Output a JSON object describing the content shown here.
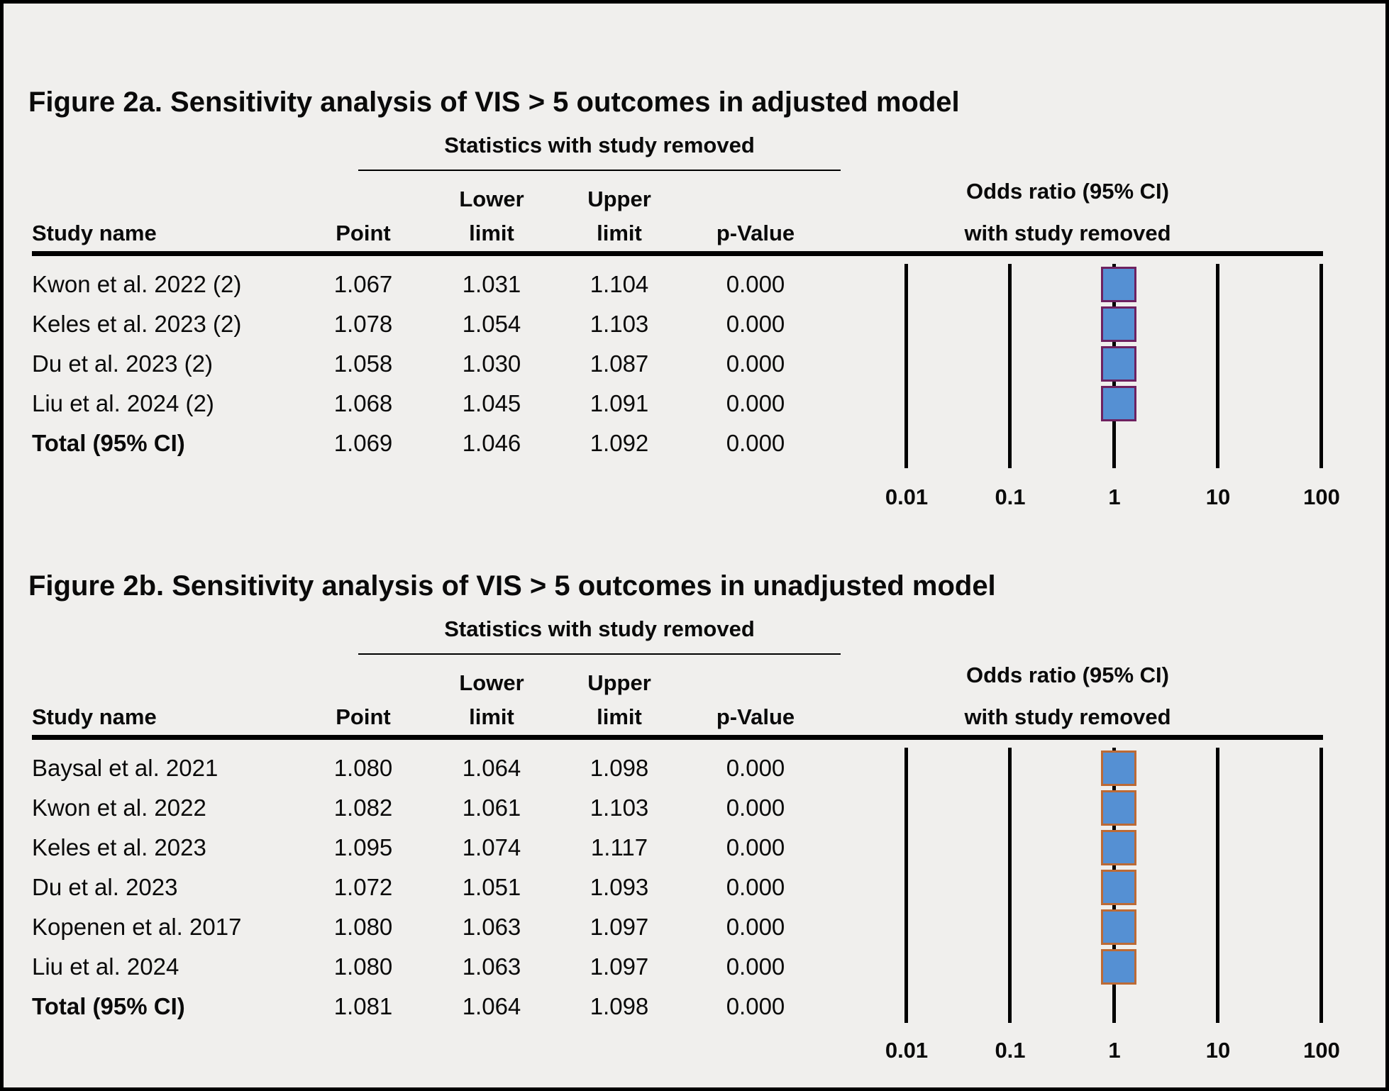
{
  "colors": {
    "background": "#f0efed",
    "marker_fill": "#5590d3",
    "marker_border_adjusted": "#6e2160",
    "marker_border_unadjusted": "#bc6a35",
    "line_color": "#000000"
  },
  "figures": [
    {
      "title": "Figure 2a. Sensitivity analysis of VIS > 5 outcomes in adjusted model",
      "stats_header": "Statistics with study removed",
      "plot_header_line1": "Odds ratio (95% CI)",
      "plot_header_line2": "with study removed",
      "columns": {
        "study": "Study name",
        "point": "Point",
        "lower_line1": "Lower",
        "lower_line2": "limit",
        "upper_line1": "Upper",
        "upper_line2": "limit",
        "p": "p-Value"
      },
      "axis_ticks": [
        "0.01",
        "0.1",
        "1",
        "10",
        "100"
      ],
      "marker_border": "#6e2160",
      "rows": [
        {
          "study": "Kwon et al. 2022 (2)",
          "point": "1.067",
          "lower": "1.031",
          "upper": "1.104",
          "p": "0.000",
          "marker": true,
          "bold": false
        },
        {
          "study": "Keles et al. 2023 (2)",
          "point": "1.078",
          "lower": "1.054",
          "upper": "1.103",
          "p": "0.000",
          "marker": true,
          "bold": false
        },
        {
          "study": "Du et al. 2023 (2)",
          "point": "1.058",
          "lower": "1.030",
          "upper": "1.087",
          "p": "0.000",
          "marker": true,
          "bold": false
        },
        {
          "study": "Liu et al. 2024 (2)",
          "point": "1.068",
          "lower": "1.045",
          "upper": "1.091",
          "p": "0.000",
          "marker": true,
          "bold": false
        },
        {
          "study": "Total (95% CI)",
          "point": "1.069",
          "lower": "1.046",
          "upper": "1.092",
          "p": "0.000",
          "marker": false,
          "bold": true
        }
      ]
    },
    {
      "title": "Figure 2b. Sensitivity analysis of VIS > 5 outcomes in unadjusted model",
      "stats_header": "Statistics with study removed",
      "plot_header_line1": "Odds ratio (95% CI)",
      "plot_header_line2": "with study removed",
      "columns": {
        "study": "Study name",
        "point": "Point",
        "lower_line1": "Lower",
        "lower_line2": "limit",
        "upper_line1": "Upper",
        "upper_line2": "limit",
        "p": "p-Value"
      },
      "axis_ticks": [
        "0.01",
        "0.1",
        "1",
        "10",
        "100"
      ],
      "marker_border": "#bc6a35",
      "rows": [
        {
          "study": "Baysal et al. 2021",
          "point": "1.080",
          "lower": "1.064",
          "upper": "1.098",
          "p": "0.000",
          "marker": true,
          "bold": false
        },
        {
          "study": "Kwon et al. 2022",
          "point": "1.082",
          "lower": "1.061",
          "upper": "1.103",
          "p": "0.000",
          "marker": true,
          "bold": false
        },
        {
          "study": "Keles et al. 2023",
          "point": "1.095",
          "lower": "1.074",
          "upper": "1.117",
          "p": "0.000",
          "marker": true,
          "bold": false
        },
        {
          "study": "Du et al. 2023",
          "point": "1.072",
          "lower": "1.051",
          "upper": "1.093",
          "p": "0.000",
          "marker": true,
          "bold": false
        },
        {
          "study": "Kopenen et al. 2017",
          "point": "1.080",
          "lower": "1.063",
          "upper": "1.097",
          "p": "0.000",
          "marker": true,
          "bold": false
        },
        {
          "study": "Liu et al. 2024",
          "point": "1.080",
          "lower": "1.063",
          "upper": "1.097",
          "p": "0.000",
          "marker": true,
          "bold": false
        },
        {
          "study": "Total (95% CI)",
          "point": "1.081",
          "lower": "1.064",
          "upper": "1.098",
          "p": "0.000",
          "marker": false,
          "bold": true
        }
      ]
    }
  ],
  "chart_data": [
    {
      "type": "scatter",
      "subtype": "forest-plot-leave-one-out",
      "title": "Figure 2a. Sensitivity analysis of VIS > 5 outcomes in adjusted model",
      "xlabel": "Odds ratio (95% CI) with study removed",
      "x_scale": "log",
      "x_ticks": [
        0.01,
        0.1,
        1,
        10,
        100
      ],
      "xlim": [
        0.01,
        100
      ],
      "grid": "vertical-lines-at-ticks",
      "legend_position": "none",
      "series": [
        {
          "name": "Odds ratio with study removed",
          "points": [
            {
              "label": "Kwon et al. 2022 (2)",
              "or": 1.067,
              "lower": 1.031,
              "upper": 1.104,
              "p_value": 0.0
            },
            {
              "label": "Keles et al. 2023 (2)",
              "or": 1.078,
              "lower": 1.054,
              "upper": 1.103,
              "p_value": 0.0
            },
            {
              "label": "Du et al. 2023 (2)",
              "or": 1.058,
              "lower": 1.03,
              "upper": 1.087,
              "p_value": 0.0
            },
            {
              "label": "Liu et al. 2024 (2)",
              "or": 1.068,
              "lower": 1.045,
              "upper": 1.091,
              "p_value": 0.0
            }
          ]
        }
      ],
      "summary": {
        "label": "Total (95% CI)",
        "or": 1.069,
        "lower": 1.046,
        "upper": 1.092,
        "p_value": 0.0
      }
    },
    {
      "type": "scatter",
      "subtype": "forest-plot-leave-one-out",
      "title": "Figure 2b. Sensitivity analysis of VIS > 5 outcomes in unadjusted model",
      "xlabel": "Odds ratio (95% CI) with study removed",
      "x_scale": "log",
      "x_ticks": [
        0.01,
        0.1,
        1,
        10,
        100
      ],
      "xlim": [
        0.01,
        100
      ],
      "grid": "vertical-lines-at-ticks",
      "legend_position": "none",
      "series": [
        {
          "name": "Odds ratio with study removed",
          "points": [
            {
              "label": "Baysal et al. 2021",
              "or": 1.08,
              "lower": 1.064,
              "upper": 1.098,
              "p_value": 0.0
            },
            {
              "label": "Kwon et al. 2022",
              "or": 1.082,
              "lower": 1.061,
              "upper": 1.103,
              "p_value": 0.0
            },
            {
              "label": "Keles et al. 2023",
              "or": 1.095,
              "lower": 1.074,
              "upper": 1.117,
              "p_value": 0.0
            },
            {
              "label": "Du et al. 2023",
              "or": 1.072,
              "lower": 1.051,
              "upper": 1.093,
              "p_value": 0.0
            },
            {
              "label": "Kopenen et al. 2017",
              "or": 1.08,
              "lower": 1.063,
              "upper": 1.097,
              "p_value": 0.0
            },
            {
              "label": "Liu et al. 2024",
              "or": 1.08,
              "lower": 1.063,
              "upper": 1.097,
              "p_value": 0.0
            }
          ]
        }
      ],
      "summary": {
        "label": "Total (95% CI)",
        "or": 1.081,
        "lower": 1.064,
        "upper": 1.098,
        "p_value": 0.0
      }
    }
  ]
}
